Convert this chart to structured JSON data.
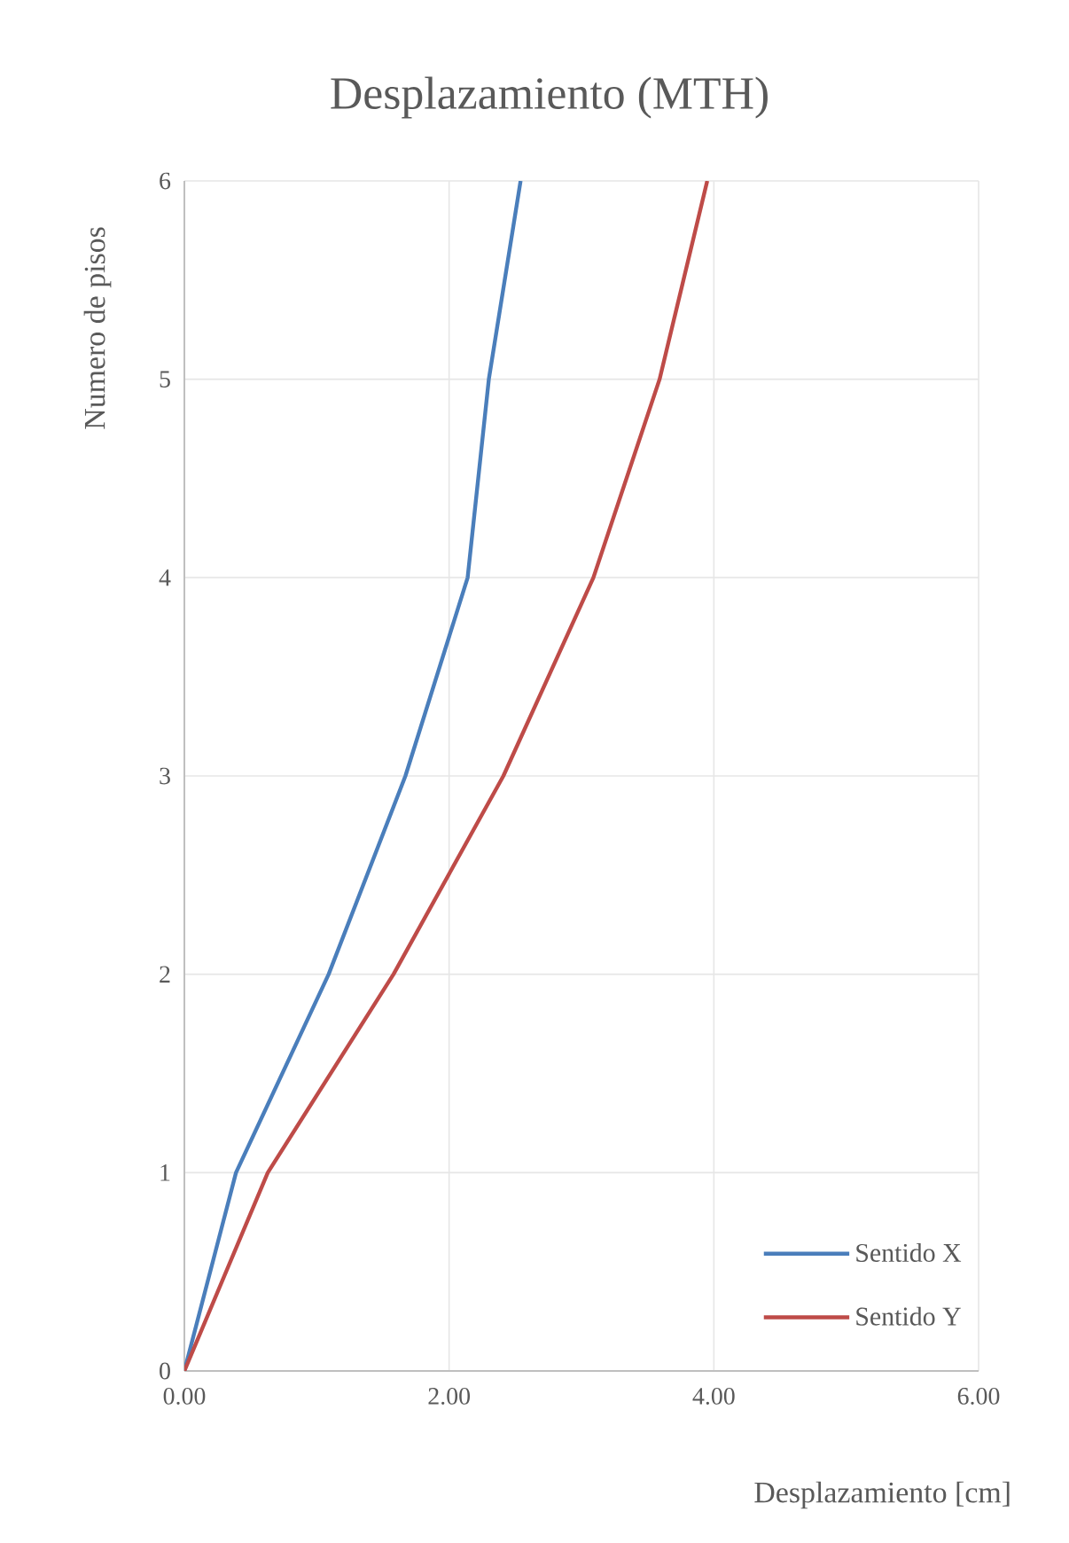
{
  "chart_data": {
    "type": "line",
    "title": "Desplazamiento (MTH)",
    "xlabel": "Desplazamiento [cm]",
    "ylabel": "Numero de pisos",
    "series": [
      {
        "name": "Sentido X",
        "color": "#4a7ebb",
        "x": [
          0,
          0.39,
          1.09,
          1.67,
          2.14,
          2.3,
          2.54
        ],
        "values": [
          0,
          1,
          2,
          3,
          4,
          5,
          6
        ]
      },
      {
        "name": "Sentido Y",
        "color": "#be4b48",
        "x": [
          0,
          0.63,
          1.58,
          2.41,
          3.09,
          3.59,
          3.95
        ],
        "values": [
          0,
          1,
          2,
          3,
          4,
          5,
          6
        ]
      }
    ],
    "xlim": [
      0,
      6
    ],
    "ylim": [
      0,
      6
    ],
    "xticks": [
      {
        "value": 0,
        "label": "0.00"
      },
      {
        "value": 2,
        "label": "2.00"
      },
      {
        "value": 4,
        "label": "4.00"
      },
      {
        "value": 6,
        "label": "6.00"
      }
    ],
    "yticks": [
      0,
      1,
      2,
      3,
      4,
      5,
      6
    ],
    "grid": true,
    "legend": "bottom right",
    "marker": "none",
    "line_style": "solid"
  }
}
